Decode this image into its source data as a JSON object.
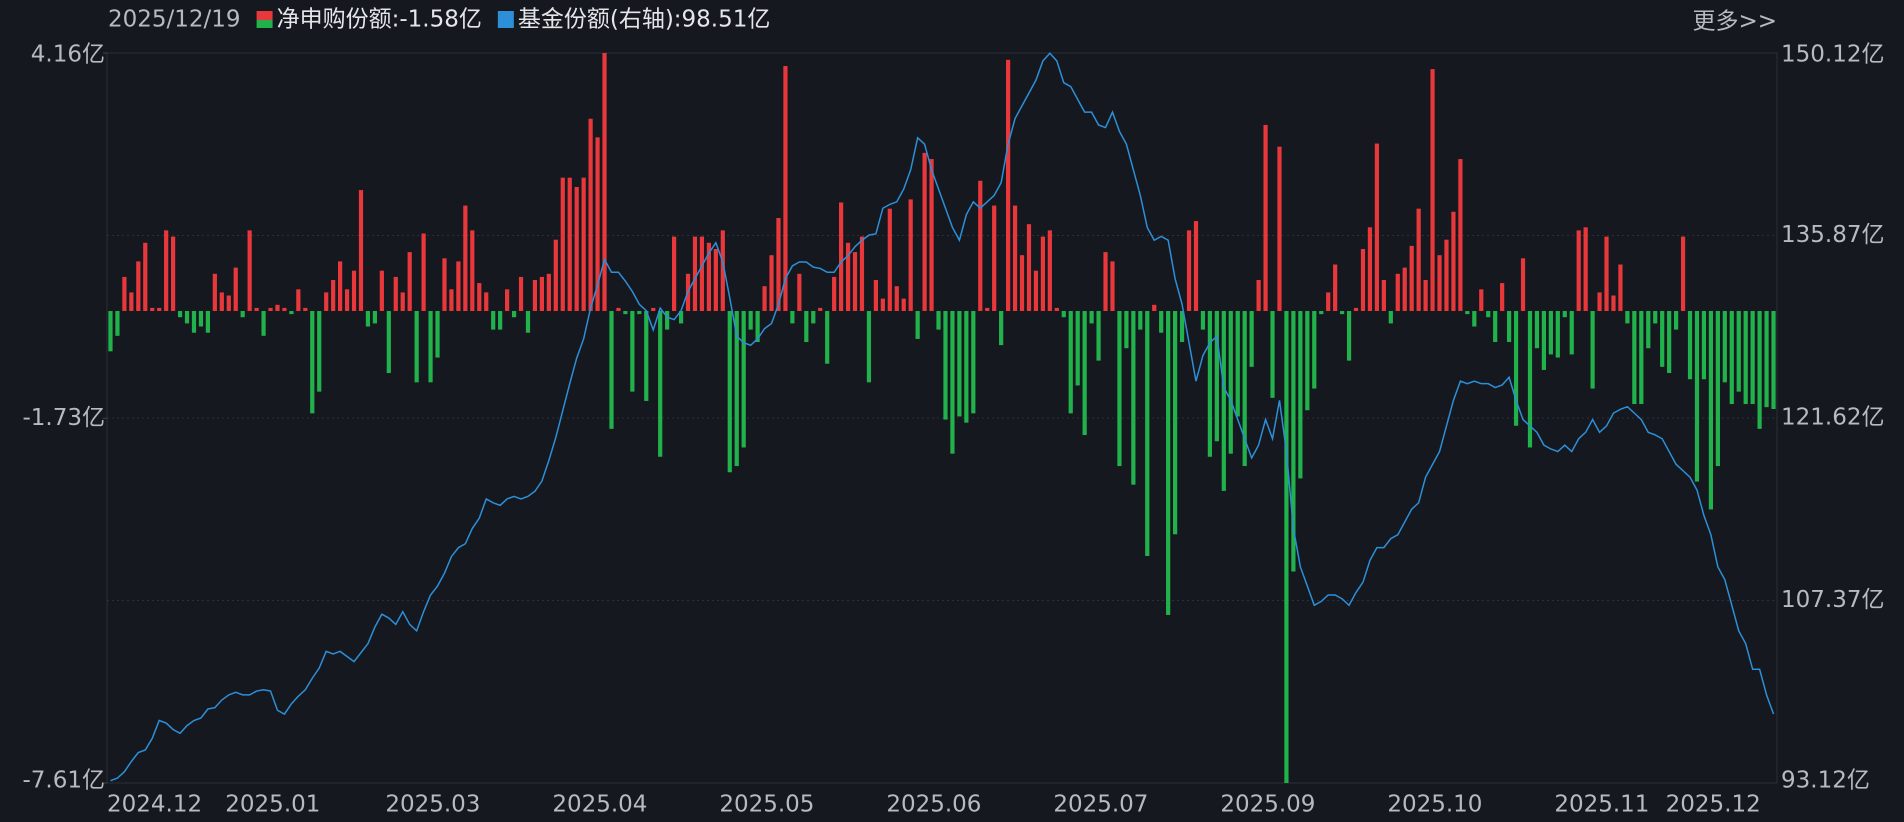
{
  "chart_data": {
    "type": "bar_line",
    "date": "2025/12/19",
    "more_link": "更多>>",
    "categories": [
      "2024.12",
      null,
      null,
      null,
      null,
      null,
      null,
      null,
      null,
      null,
      null,
      null,
      null,
      null,
      null,
      null,
      null,
      "2025.01",
      null,
      null,
      null,
      null,
      null,
      null,
      null,
      null,
      null,
      null,
      null,
      null,
      null,
      null,
      null,
      null,
      null,
      null,
      null,
      null,
      null,
      null,
      "2025.03",
      null,
      null,
      null,
      null,
      null,
      null,
      null,
      null,
      null,
      null,
      null,
      null,
      null,
      null,
      null,
      null,
      null,
      null,
      null,
      null,
      null,
      null,
      null,
      "2025.04",
      null,
      null,
      null,
      null,
      null,
      null,
      null,
      null,
      null,
      null,
      null,
      null,
      null,
      null,
      null,
      null,
      null,
      null,
      null,
      null,
      null,
      null,
      null,
      "2025.05",
      null,
      null,
      null,
      null,
      null,
      null,
      null,
      null,
      null,
      null,
      null,
      null,
      null,
      null,
      null,
      null,
      null,
      null,
      null,
      null,
      null,
      null,
      null,
      "2025.06",
      null,
      null,
      null,
      null,
      null,
      null,
      null,
      null,
      null,
      null,
      null,
      null,
      null,
      null,
      null,
      null,
      null,
      null,
      null,
      null,
      null,
      null,
      null,
      "2025.07",
      null,
      null,
      null,
      null,
      null,
      null,
      null,
      null,
      null,
      null,
      null,
      null,
      null,
      null,
      null,
      null,
      null,
      null,
      null,
      null,
      null,
      null,
      null,
      "2025.09",
      null,
      null,
      null,
      null,
      null,
      null,
      null,
      null,
      null,
      null,
      null,
      null,
      null,
      null,
      null,
      null,
      null,
      null,
      null,
      null,
      null,
      null,
      null,
      "2025.10",
      null,
      null,
      null,
      null,
      null,
      null,
      null,
      null,
      null,
      null,
      null,
      null,
      null,
      null,
      null,
      null,
      null,
      null,
      null,
      null,
      null,
      null,
      null,
      "2025.11",
      null,
      null,
      null,
      null,
      null,
      null,
      null,
      null,
      null,
      null,
      null,
      null,
      null,
      null,
      null,
      "2025.12",
      null,
      null,
      null,
      null,
      null,
      null,
      null,
      null,
      null,
      null,
      null,
      null,
      null,
      null,
      null
    ],
    "series": [
      {
        "name": "净申购份额:-1.58亿",
        "positive_color": "#e8383b",
        "negative_color": "#22b24c",
        "values": [
          -0.65,
          -0.4,
          0.55,
          0.3,
          0.8,
          1.1,
          0.05,
          0.05,
          1.3,
          1.2,
          -0.1,
          -0.2,
          -0.35,
          -0.25,
          -0.35,
          0.6,
          0.3,
          0.25,
          0.7,
          -0.1,
          1.3,
          0.05,
          -0.4,
          0.05,
          0.1,
          0.05,
          -0.05,
          0.35,
          0.05,
          -1.65,
          -1.3,
          0.3,
          0.5,
          0.8,
          0.35,
          0.65,
          1.95,
          -0.25,
          -0.2,
          0.65,
          -1.0,
          0.55,
          0.3,
          0.95,
          -1.15,
          1.25,
          -1.15,
          -0.75,
          0.85,
          0.35,
          0.8,
          1.7,
          1.3,
          0.45,
          0.3,
          -0.3,
          -0.3,
          0.35,
          -0.1,
          0.55,
          -0.35,
          0.5,
          0.55,
          0.6,
          1.15,
          2.15,
          2.15,
          2.0,
          2.15,
          3.1,
          2.8,
          4.16,
          -1.9,
          0.05,
          -0.05,
          -1.3,
          -0.05,
          -1.45,
          0.05,
          -2.35,
          -0.3,
          1.2,
          -0.2,
          0.6,
          1.2,
          1.2,
          1.1,
          1.0,
          1.3,
          -2.6,
          -2.5,
          -2.2,
          -0.3,
          -0.5,
          0.4,
          0.9,
          1.5,
          3.95,
          -0.2,
          0.6,
          -0.5,
          -0.2,
          0.05,
          -0.85,
          0.55,
          1.75,
          1.1,
          0.95,
          1.2,
          -1.15,
          0.5,
          0.2,
          1.65,
          0.4,
          0.2,
          1.8,
          -0.45,
          2.55,
          2.45,
          -0.3,
          -1.75,
          -2.3,
          -1.7,
          -1.8,
          -1.65,
          2.1,
          0.05,
          1.7,
          -0.55,
          4.05,
          1.7,
          0.9,
          1.4,
          0.65,
          1.2,
          1.3,
          0.05,
          -0.1,
          -1.65,
          -1.2,
          -2.0,
          -0.2,
          -0.8,
          0.95,
          0.8,
          -2.5,
          -0.6,
          -2.8,
          -0.3,
          -3.95,
          0.1,
          -0.35,
          -4.9,
          -3.6,
          -0.5,
          1.3,
          1.45,
          -0.3,
          -2.35,
          -2.1,
          -2.9,
          -2.3,
          -1.7,
          -2.5,
          -0.9,
          0.5,
          3.0,
          -1.4,
          2.65,
          -7.61,
          -4.2,
          -2.7,
          -1.6,
          -1.25,
          -0.05,
          0.3,
          0.75,
          -0.05,
          -0.8,
          0.05,
          1.0,
          1.35,
          2.7,
          0.5,
          -0.2,
          0.6,
          0.7,
          1.05,
          1.65,
          0.5,
          3.9,
          0.9,
          1.15,
          1.6,
          2.45,
          -0.05,
          -0.25,
          0.35,
          -0.1,
          -0.5,
          0.45,
          -0.5,
          -1.85,
          0.85,
          -2.2,
          -0.6,
          -0.95,
          -0.7,
          -0.75,
          -0.1,
          -0.7,
          1.3,
          1.35,
          -1.25,
          0.3,
          1.2,
          0.25,
          0.75,
          -0.2,
          -1.5,
          -1.5,
          -0.6,
          -0.2,
          -0.9,
          -1.0,
          -0.3,
          1.2,
          -1.1,
          -2.75,
          -1.1,
          -3.2,
          -2.5,
          -1.15,
          -1.5,
          -1.3,
          -1.5,
          -1.5,
          -1.9,
          -1.55,
          -1.58
        ]
      },
      {
        "name": "基金份额(右轴):98.51亿",
        "color": "#2d8fd8",
        "axis": "y2",
        "values": [
          93.3,
          93.5,
          94.0,
          94.8,
          95.5,
          95.7,
          96.6,
          98.0,
          97.8,
          97.3,
          97.0,
          97.6,
          98.0,
          98.2,
          98.9,
          99.0,
          99.6,
          100.0,
          100.2,
          100.0,
          100.0,
          100.3,
          100.4,
          100.3,
          98.8,
          98.5,
          99.3,
          99.9,
          100.4,
          101.3,
          102.1,
          103.4,
          103.2,
          103.4,
          103.0,
          102.6,
          103.3,
          104.0,
          105.3,
          106.3,
          106.0,
          105.5,
          106.5,
          105.5,
          105.0,
          106.5,
          107.8,
          108.5,
          109.5,
          110.8,
          111.5,
          111.8,
          113.0,
          113.8,
          115.3,
          115.0,
          114.8,
          115.3,
          115.5,
          115.3,
          115.5,
          115.9,
          116.7,
          118.3,
          120.1,
          122.2,
          124.3,
          126.3,
          127.8,
          130.2,
          132.0,
          134.0,
          133.0,
          133.0,
          132.3,
          131.5,
          130.5,
          130.0,
          128.5,
          130.2,
          129.5,
          129.3,
          130.0,
          131.5,
          132.5,
          133.5,
          134.5,
          135.3,
          133.8,
          131.0,
          128.0,
          127.5,
          127.3,
          127.8,
          128.6,
          129.0,
          130.5,
          132.5,
          133.5,
          133.8,
          133.8,
          133.4,
          133.3,
          133.0,
          133.0,
          133.8,
          134.3,
          135.0,
          135.5,
          135.9,
          136.0,
          138.0,
          138.3,
          138.5,
          139.5,
          141.0,
          143.5,
          143.0,
          141.0,
          139.5,
          138.0,
          136.5,
          135.5,
          137.5,
          138.5,
          138.0,
          138.5,
          139.0,
          140.0,
          143.0,
          145.0,
          146.0,
          147.0,
          148.0,
          149.5,
          150.1,
          149.5,
          147.8,
          147.5,
          146.5,
          145.5,
          145.5,
          144.5,
          144.3,
          145.5,
          144.0,
          143.0,
          141.0,
          139.0,
          136.5,
          135.5,
          135.8,
          135.5,
          132.5,
          130.5,
          127.5,
          124.5,
          126.5,
          127.5,
          128.0,
          124.0,
          123.0,
          121.5,
          120.0,
          118.5,
          119.5,
          121.5,
          120.0,
          123.0,
          119.0,
          113.0,
          110.0,
          108.5,
          107.0,
          107.3,
          107.8,
          107.8,
          107.5,
          107.0,
          108.0,
          108.8,
          110.5,
          111.5,
          111.5,
          112.2,
          112.5,
          113.5,
          114.5,
          115.0,
          117.0,
          118.0,
          119.0,
          121.0,
          123.0,
          124.5,
          124.3,
          124.5,
          124.3,
          124.3,
          124.0,
          124.2,
          124.8,
          123.0,
          121.5,
          121.0,
          120.5,
          119.5,
          119.2,
          119.0,
          119.5,
          119.0,
          120.0,
          120.5,
          121.5,
          120.5,
          121.0,
          122.0,
          122.3,
          122.5,
          122.0,
          121.5,
          120.5,
          120.3,
          120.0,
          119.0,
          118.0,
          117.5,
          117.0,
          116.0,
          114.0,
          112.5,
          110.0,
          109.0,
          107.0,
          105.0,
          104.0,
          102.0,
          102.0,
          100.0,
          98.51
        ]
      }
    ],
    "ylim": [
      -7.61,
      4.16
    ],
    "yticks": [
      {
        "value": 4.16,
        "label": "4.16亿"
      },
      {
        "value": -1.73,
        "label": "-1.73亿"
      },
      {
        "value": -7.61,
        "label": "-7.61亿"
      }
    ],
    "y2lim": [
      93.12,
      150.12
    ],
    "y2ticks": [
      {
        "value": 150.12,
        "label": "150.12亿"
      },
      {
        "value": 135.87,
        "label": "135.87亿"
      },
      {
        "value": 121.62,
        "label": "121.62亿"
      },
      {
        "value": 107.37,
        "label": "107.37亿"
      },
      {
        "value": 93.12,
        "label": "93.12亿"
      }
    ],
    "grid": true
  }
}
